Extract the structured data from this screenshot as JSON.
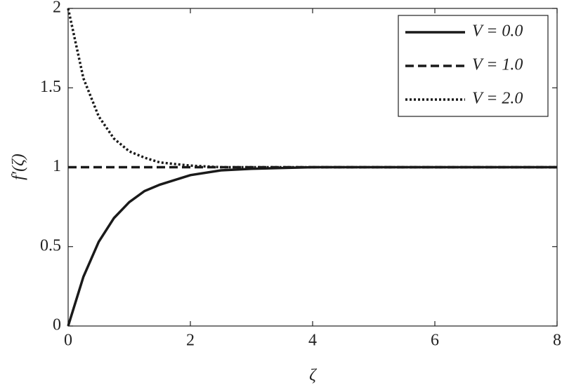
{
  "chart_data": {
    "type": "line",
    "x_label": "ζ",
    "y_label": "f′(ζ)",
    "x": [
      0,
      0.25,
      0.5,
      0.75,
      1,
      1.25,
      1.5,
      2,
      2.5,
      3,
      4,
      5,
      6,
      7,
      8
    ],
    "series": [
      {
        "name": "V = 0.0",
        "color": "#1a1a1a",
        "linestyle": "solid",
        "values": [
          0,
          0.31,
          0.53,
          0.68,
          0.78,
          0.85,
          0.89,
          0.95,
          0.98,
          0.99,
          1,
          1,
          1,
          1,
          1
        ]
      },
      {
        "name": "V = 1.0",
        "color": "#1a1a1a",
        "linestyle": "dashed",
        "values": [
          1,
          1,
          1,
          1,
          1,
          1,
          1,
          1,
          1,
          1,
          1,
          1,
          1,
          1,
          1
        ]
      },
      {
        "name": "V = 2.0",
        "color": "#1a1a1a",
        "linestyle": "dotted",
        "values": [
          2,
          1.56,
          1.32,
          1.18,
          1.1,
          1.06,
          1.03,
          1.01,
          1,
          1,
          1,
          1,
          1,
          1,
          1
        ]
      }
    ],
    "xlim": [
      0,
      8
    ],
    "xticks": [
      0,
      2,
      4,
      6,
      8
    ],
    "ylim": [
      0,
      2
    ],
    "yticks": [
      0,
      0.5,
      1,
      1.5,
      2
    ],
    "grid": false,
    "legend": "upper right"
  }
}
